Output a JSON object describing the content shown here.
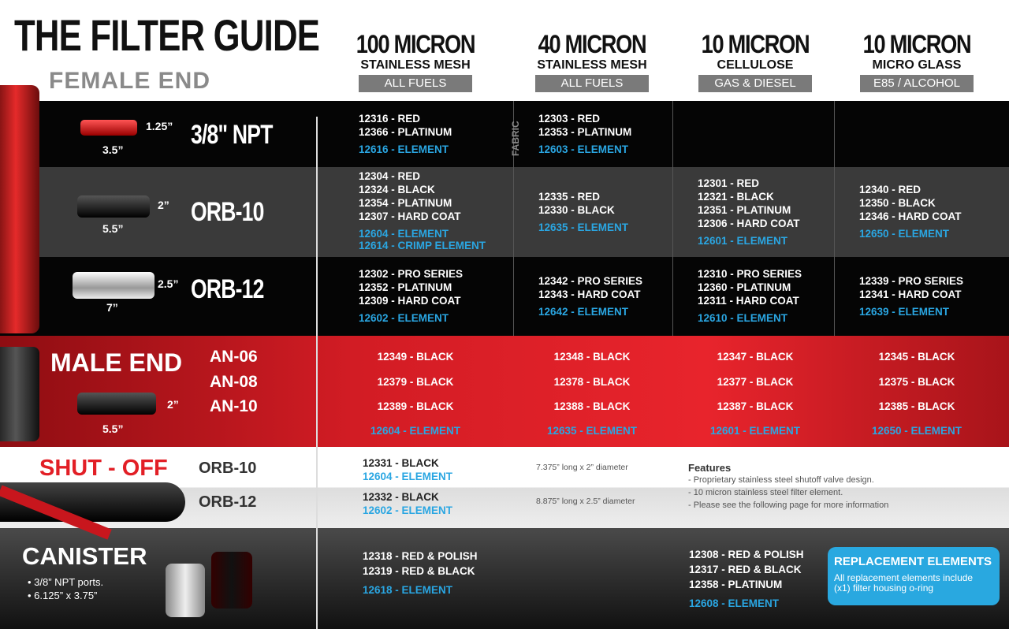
{
  "header": {
    "title": "THE FILTER GUIDE",
    "subtitle": "FEMALE END"
  },
  "columns": [
    {
      "micron": "100 MICRON",
      "media": "STAINLESS MESH",
      "fuel": "ALL FUELS"
    },
    {
      "micron": "40 MICRON",
      "media": "STAINLESS MESH",
      "fuel": "ALL FUELS"
    },
    {
      "micron": "10 MICRON",
      "media": "CELLULOSE",
      "fuel": "GAS & DIESEL"
    },
    {
      "micron": "10 MICRON",
      "media": "MICRO GLASS",
      "fuel": "E85 / ALCOHOL"
    }
  ],
  "female_rows": [
    {
      "label": "3/8\" NPT",
      "dims": [
        "1.25”",
        "3.5”"
      ],
      "cells": [
        {
          "parts": [
            "12316 - RED",
            "12366 - PLATINUM"
          ],
          "elements": [
            "12616 - ELEMENT"
          ]
        },
        {
          "tag": "FABRIC",
          "parts": [
            "12303 - RED",
            "12353 - PLATINUM"
          ],
          "elements": [
            "12603 - ELEMENT"
          ]
        },
        {
          "parts": [],
          "elements": []
        },
        {
          "parts": [],
          "elements": []
        }
      ]
    },
    {
      "label": "ORB-10",
      "dims": [
        "2”",
        "5.5”"
      ],
      "cells": [
        {
          "parts": [
            "12304 - RED",
            "12324 - BLACK",
            "12354 - PLATINUM",
            "12307 - HARD COAT"
          ],
          "elements": [
            "12604 - ELEMENT",
            "12614 - CRIMP ELEMENT"
          ]
        },
        {
          "parts": [
            "12335 - RED",
            "12330 - BLACK"
          ],
          "elements": [
            "12635 - ELEMENT"
          ]
        },
        {
          "parts": [
            "12301 - RED",
            "12321 - BLACK",
            "12351 - PLATINUM",
            "12306 - HARD COAT"
          ],
          "elements": [
            "12601 - ELEMENT"
          ]
        },
        {
          "parts": [
            "12340 - RED",
            "12350 - BLACK",
            "12346 - HARD COAT"
          ],
          "elements": [
            "12650 - ELEMENT"
          ]
        }
      ]
    },
    {
      "label": "ORB-12",
      "dims": [
        "2.5”",
        "7”"
      ],
      "cells": [
        {
          "parts": [
            "12302 - PRO SERIES",
            "12352 - PLATINUM",
            "12309 - HARD COAT"
          ],
          "elements": [
            "12602 - ELEMENT"
          ]
        },
        {
          "parts": [
            "12342 - PRO SERIES",
            "12343 - HARD COAT"
          ],
          "elements": [
            "12642 - ELEMENT"
          ]
        },
        {
          "parts": [
            "12310 - PRO SERIES",
            "12360 - PLATINUM",
            "12311 - HARD COAT"
          ],
          "elements": [
            "12610 - ELEMENT"
          ]
        },
        {
          "parts": [
            "12339 - PRO SERIES",
            "12341 - HARD COAT"
          ],
          "elements": [
            "12639 - ELEMENT"
          ]
        }
      ]
    }
  ],
  "male": {
    "title": "MALE END",
    "dims": [
      "2”",
      "5.5”"
    ],
    "rows": [
      {
        "label": "AN-06",
        "cells": [
          "12349 - BLACK",
          "12348 - BLACK",
          "12347 - BLACK",
          "12345 - BLACK"
        ]
      },
      {
        "label": "AN-08",
        "cells": [
          "12379 - BLACK",
          "12378 - BLACK",
          "12377 - BLACK",
          "12375 - BLACK"
        ]
      },
      {
        "label": "AN-10",
        "cells": [
          "12389 - BLACK",
          "12388 - BLACK",
          "12387 - BLACK",
          "12385 - BLACK"
        ]
      }
    ],
    "elements": [
      "12604 - ELEMENT",
      "12635 - ELEMENT",
      "12601 - ELEMENT",
      "12650 - ELEMENT"
    ]
  },
  "shutoff": {
    "title": "SHUT - OFF",
    "rows": [
      {
        "label": "ORB-10",
        "part": "12331 - BLACK",
        "element": "12604 - ELEMENT",
        "note": "7.375” long x 2” diameter"
      },
      {
        "label": "ORB-12",
        "part": "12332 - BLACK",
        "element": "12602 - ELEMENT",
        "note": "8.875” long x 2.5” diameter"
      }
    ],
    "features": {
      "title": "Features",
      "items": [
        "- Proprietary stainless steel shutoff valve design.",
        "- 10 micron stainless steel filter element.",
        "- Please see the following page for more information"
      ]
    }
  },
  "canister": {
    "title": "CANISTER",
    "bullets": [
      "• 3/8” NPT ports.",
      "• 6.125” x 3.75”"
    ],
    "cells": [
      {
        "parts": [
          "12318 - RED & POLISH",
          "12319 - RED & BLACK"
        ],
        "elements": [
          "12618 - ELEMENT"
        ]
      },
      {
        "parts": [
          "12308 - RED & POLISH",
          "12317 - RED & BLACK",
          "12358 - PLATINUM"
        ],
        "elements": [
          "12608 - ELEMENT"
        ]
      }
    ],
    "callout": {
      "title": "REPLACEMENT ELEMENTS",
      "text": "All replacement elements include (x1) filter housing o-ring"
    }
  }
}
